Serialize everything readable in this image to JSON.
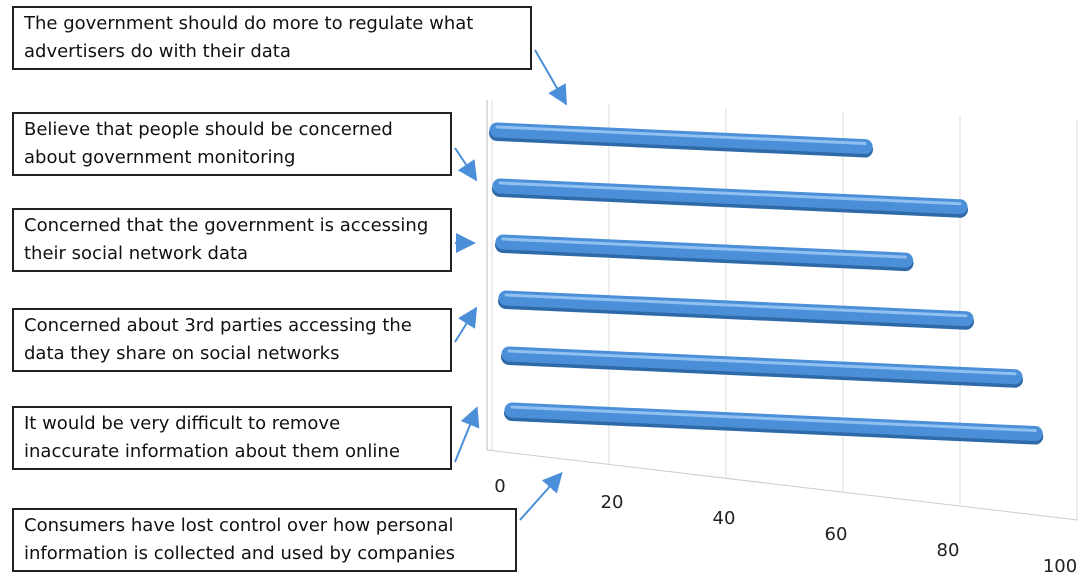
{
  "chart_data": {
    "type": "bar",
    "orientation": "horizontal",
    "categories": [
      "The government should do more to regulate what advertisers do with their data",
      "Believe that people should be concerned about government monitoring",
      "Concerned that the government is accessing their social network data",
      "Concerned about 3rd parties accessing the data they share on social networks",
      "It would be very difficult to remove inaccurate information about them online",
      "Consumers have lost control over how personal information is collected and used by companies"
    ],
    "values": [
      64,
      80,
      70,
      80,
      88,
      91
    ],
    "color": "#4a8fd8",
    "xlim": [
      0,
      100
    ],
    "xticks": [
      0,
      20,
      40,
      60,
      80,
      100
    ],
    "grid": true
  }
}
